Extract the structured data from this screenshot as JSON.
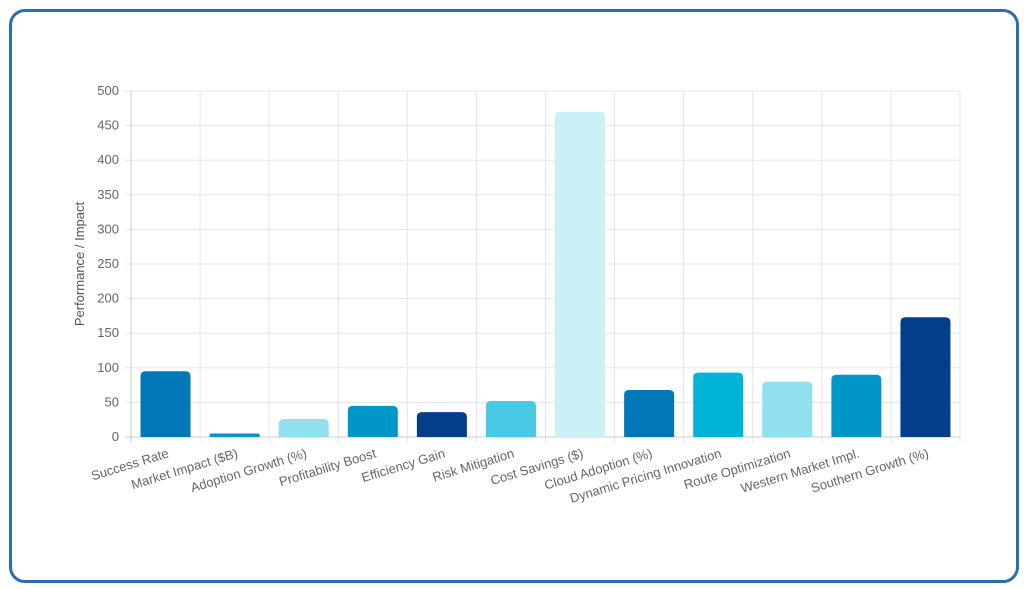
{
  "chart_data": {
    "type": "bar",
    "categories": [
      "Success Rate",
      "Market Impact ($B)",
      "Adoption Growth (%)",
      "Profitability Boost",
      "Efficiency Gain",
      "Risk Mitigation",
      "Cost Savings ($)",
      "Cloud Adoption (%)",
      "Dynamic Pricing Innovation",
      "Route Optimization",
      "Western Market Impl.",
      "Southern Growth (%)"
    ],
    "values": [
      95,
      5,
      26,
      45,
      36,
      52,
      470,
      68,
      93,
      80,
      90,
      173
    ],
    "colors": [
      "#0077b6",
      "#0096c7",
      "#90e0ef",
      "#0096c7",
      "#023e8a",
      "#48cae4",
      "#caf0f8",
      "#0077b6",
      "#00b4d8",
      "#90e0ef",
      "#0096c7",
      "#023e8a"
    ],
    "ylabel": "Performance / Impact",
    "ylim": [
      0,
      500
    ],
    "yticks": [
      0,
      50,
      100,
      150,
      200,
      250,
      300,
      350,
      400,
      450,
      500
    ],
    "grid": true
  }
}
